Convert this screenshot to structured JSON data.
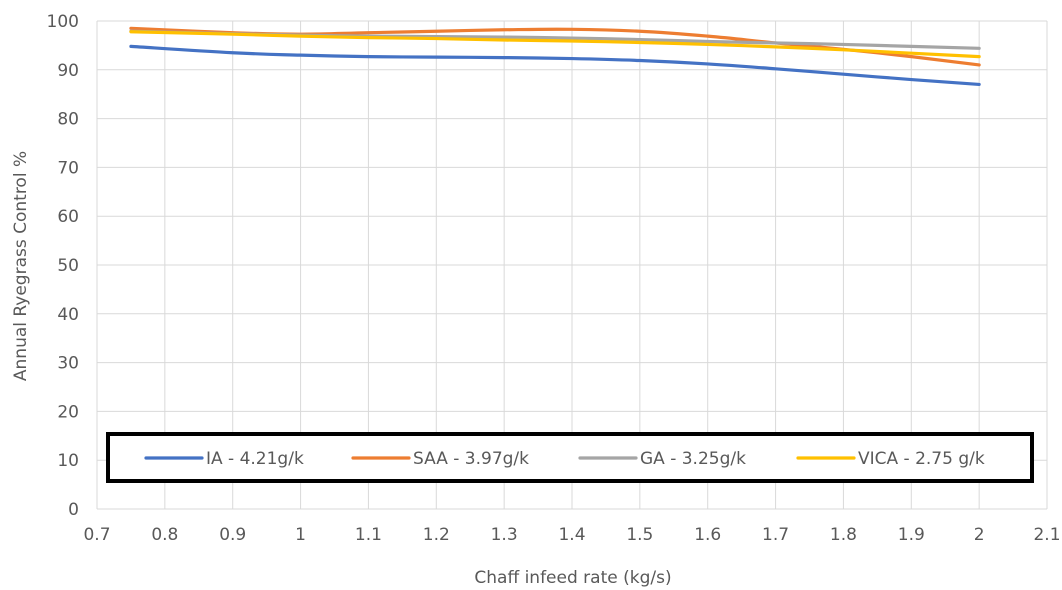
{
  "chart_data": {
    "type": "line",
    "title": "",
    "xlabel": "Chaff infeed rate (kg/s)",
    "ylabel": "Annual Ryegrass Control %",
    "xlim": [
      0.7,
      2.1
    ],
    "ylim": [
      0,
      100
    ],
    "x_ticks": [
      "0.7",
      "0.8",
      "0.9",
      "1",
      "1.1",
      "1.2",
      "1.3",
      "1.4",
      "1.5",
      "1.6",
      "1.7",
      "1.8",
      "1.9",
      "2",
      "2.1"
    ],
    "y_ticks": [
      "0",
      "10",
      "20",
      "30",
      "40",
      "50",
      "60",
      "70",
      "80",
      "90",
      "100"
    ],
    "grid": true,
    "legend_position": "bottom-inside",
    "series": [
      {
        "name": "IA - 4.21g/k",
        "color": "#4472C4",
        "x": [
          0.75,
          0.9,
          1.0,
          1.1,
          1.2,
          1.3,
          1.4,
          1.5,
          1.6,
          1.7,
          1.8,
          1.9,
          2.0
        ],
        "y": [
          94.8,
          93.5,
          93.0,
          92.7,
          92.6,
          92.5,
          92.3,
          91.9,
          91.2,
          90.2,
          89.1,
          88.0,
          87.0
        ]
      },
      {
        "name": "SAA - 3.97g/k",
        "color": "#ED7D31",
        "x": [
          0.75,
          0.9,
          1.0,
          1.1,
          1.2,
          1.3,
          1.4,
          1.5,
          1.6,
          1.7,
          1.8,
          1.9,
          2.0
        ],
        "y": [
          98.5,
          97.6,
          97.3,
          97.6,
          97.9,
          98.2,
          98.3,
          97.9,
          96.9,
          95.5,
          94.2,
          92.7,
          91.0
        ]
      },
      {
        "name": "GA - 3.25g/k",
        "color": "#A5A5A5",
        "x": [
          0.75,
          0.9,
          1.0,
          1.1,
          1.2,
          1.3,
          1.4,
          1.5,
          1.6,
          1.7,
          1.8,
          1.9,
          2.0
        ],
        "y": [
          97.9,
          97.4,
          97.1,
          96.9,
          96.8,
          96.7,
          96.5,
          96.2,
          95.8,
          95.5,
          95.2,
          94.8,
          94.4
        ]
      },
      {
        "name": "VICA - 2.75 g/k",
        "color": "#FFC000",
        "x": [
          0.75,
          0.9,
          1.0,
          1.1,
          1.2,
          1.3,
          1.4,
          1.5,
          1.6,
          1.7,
          1.8,
          1.9,
          2.0
        ],
        "y": [
          97.8,
          97.3,
          96.9,
          96.6,
          96.4,
          96.1,
          95.9,
          95.6,
          95.2,
          94.7,
          94.1,
          93.4,
          92.7
        ]
      }
    ]
  }
}
